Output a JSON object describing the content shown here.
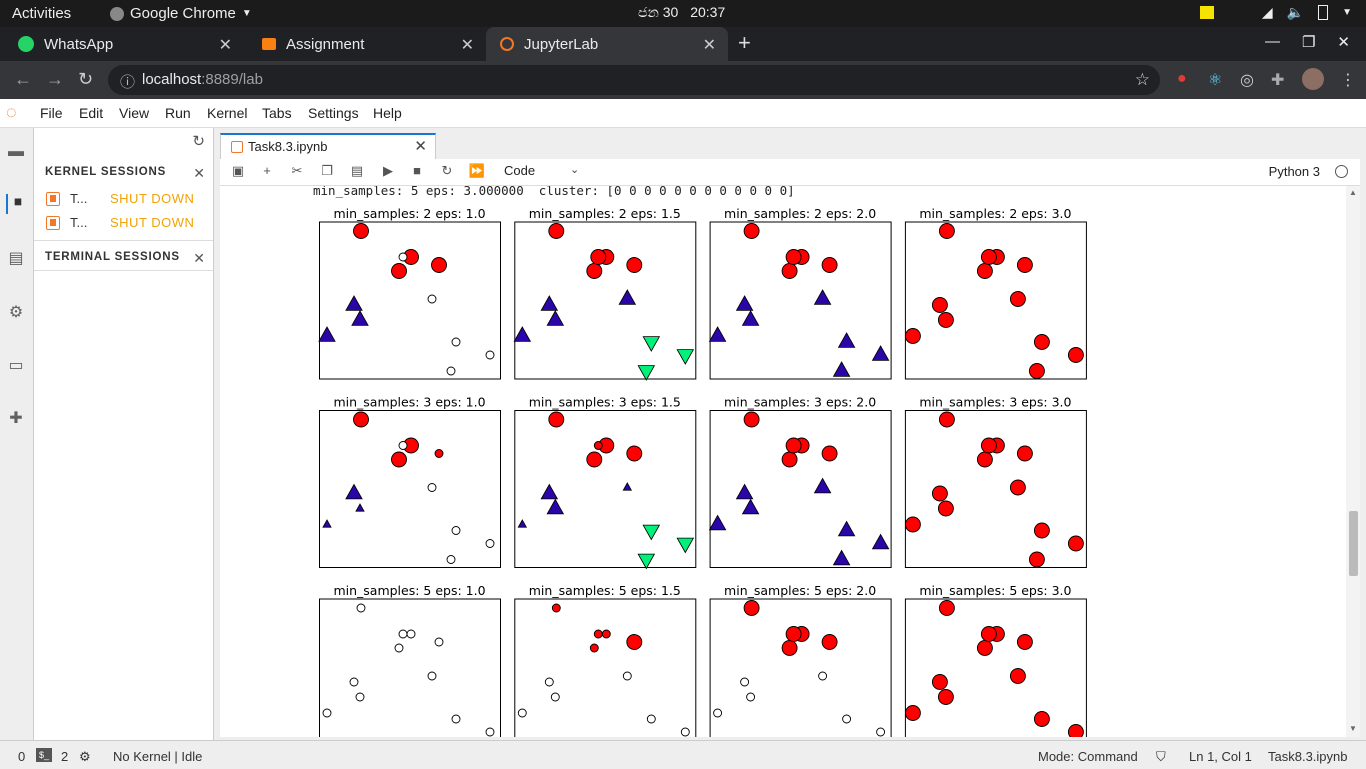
{
  "system_bar": {
    "activities": "Activities",
    "app_name": "Google Chrome",
    "clock_date": "ජන 30",
    "clock_time": "20:37"
  },
  "browser": {
    "tabs": [
      {
        "title": "WhatsApp",
        "icon": "whatsapp-icon",
        "color": "#25d366"
      },
      {
        "title": "Assignment",
        "icon": "moodle-icon",
        "color": "#f98012"
      },
      {
        "title": "JupyterLab",
        "icon": "jupyter-icon",
        "color": "#f37726"
      }
    ],
    "url_host": "localhost",
    "url_rest": ":8889/lab"
  },
  "jupyter": {
    "menu": [
      "File",
      "Edit",
      "View",
      "Run",
      "Kernel",
      "Tabs",
      "Settings",
      "Help"
    ],
    "sidebar": {
      "kernel_sessions_header": "KERNEL SESSIONS",
      "sessions": [
        {
          "name": "T...",
          "action": "SHUT DOWN"
        },
        {
          "name": "T...",
          "action": "SHUT DOWN"
        }
      ],
      "terminal_sessions_header": "TERMINAL SESSIONS"
    },
    "document_tab": "Task8.3.ipynb",
    "cell_type": "Code",
    "kernel_name": "Python 3",
    "stream_output": "min_samples: 5 eps: 3.000000  cluster: [0 0 0 0 0 0 0 0 0 0 0 0]",
    "status": {
      "terminal_count": "0",
      "kernel_count": "2",
      "kernel_state": "No Kernel | Idle",
      "mode": "Mode: Command",
      "cursor": "Ln 1, Col 1",
      "file": "Task8.3.ipynb"
    }
  },
  "chart_data": {
    "type": "scatter",
    "point_layout": {
      "x": [
        42,
        92,
        120,
        80,
        84,
        35,
        41,
        113,
        8,
        137,
        171,
        132
      ],
      "y": [
        9,
        35,
        43,
        49,
        35,
        83,
        98,
        77,
        114,
        120,
        133,
        149
      ],
      "note": "same 12 points in every subplot; rows = min_samples, cols = eps"
    },
    "colors": {
      "cluster_0": "#ff0000",
      "cluster_1": "#2a05a8",
      "cluster_2": "#00f07a",
      "noise": "#ffffff"
    },
    "subplots": [
      {
        "title": "min_samples: 2 eps: 1.0",
        "labels": [
          0,
          0,
          0,
          0,
          -1,
          1,
          1,
          -1,
          1,
          -1,
          -1,
          -1
        ],
        "core": [
          1,
          1,
          1,
          1,
          0,
          1,
          1,
          0,
          1,
          0,
          0,
          0
        ]
      },
      {
        "title": "min_samples: 2 eps: 1.5",
        "labels": [
          0,
          0,
          0,
          0,
          0,
          1,
          1,
          1,
          1,
          2,
          2,
          2
        ],
        "core": [
          1,
          1,
          1,
          1,
          1,
          1,
          1,
          1,
          1,
          1,
          1,
          1
        ]
      },
      {
        "title": "min_samples: 2 eps: 2.0",
        "labels": [
          0,
          0,
          0,
          0,
          0,
          1,
          1,
          1,
          1,
          1,
          1,
          1
        ],
        "core": [
          1,
          1,
          1,
          1,
          1,
          1,
          1,
          1,
          1,
          1,
          1,
          1
        ]
      },
      {
        "title": "min_samples: 2 eps: 3.0",
        "labels": [
          0,
          0,
          0,
          0,
          0,
          0,
          0,
          0,
          0,
          0,
          0,
          0
        ],
        "core": [
          1,
          1,
          1,
          1,
          1,
          1,
          1,
          1,
          1,
          1,
          1,
          1
        ]
      },
      {
        "title": "min_samples: 3 eps: 1.0",
        "labels": [
          0,
          0,
          0,
          0,
          -1,
          1,
          1,
          -1,
          1,
          -1,
          -1,
          -1
        ],
        "core": [
          1,
          1,
          0,
          1,
          0,
          1,
          0,
          0,
          0,
          0,
          0,
          0
        ]
      },
      {
        "title": "min_samples: 3 eps: 1.5",
        "labels": [
          0,
          0,
          0,
          0,
          0,
          1,
          1,
          1,
          1,
          2,
          2,
          2
        ],
        "core": [
          1,
          1,
          1,
          1,
          0,
          1,
          1,
          0,
          0,
          1,
          1,
          1
        ]
      },
      {
        "title": "min_samples: 3 eps: 2.0",
        "labels": [
          0,
          0,
          0,
          0,
          0,
          1,
          1,
          1,
          1,
          1,
          1,
          1
        ],
        "core": [
          1,
          1,
          1,
          1,
          1,
          1,
          1,
          1,
          1,
          1,
          1,
          1
        ]
      },
      {
        "title": "min_samples: 3 eps: 3.0",
        "labels": [
          0,
          0,
          0,
          0,
          0,
          0,
          0,
          0,
          0,
          0,
          0,
          0
        ],
        "core": [
          1,
          1,
          1,
          1,
          1,
          1,
          1,
          1,
          1,
          1,
          1,
          1
        ]
      },
      {
        "title": "min_samples: 5 eps: 1.0",
        "labels": [
          -1,
          -1,
          -1,
          -1,
          -1,
          -1,
          -1,
          -1,
          -1,
          -1,
          -1,
          -1
        ],
        "core": [
          0,
          0,
          0,
          0,
          0,
          0,
          0,
          0,
          0,
          0,
          0,
          0
        ]
      },
      {
        "title": "min_samples: 5 eps: 1.5",
        "labels": [
          0,
          0,
          0,
          0,
          0,
          -1,
          -1,
          -1,
          -1,
          -1,
          -1,
          -1
        ],
        "core": [
          0,
          0,
          1,
          0,
          0,
          0,
          0,
          0,
          0,
          0,
          0,
          0
        ]
      },
      {
        "title": "min_samples: 5 eps: 2.0",
        "labels": [
          0,
          0,
          0,
          0,
          0,
          -1,
          -1,
          -1,
          -1,
          -1,
          -1,
          -1
        ],
        "core": [
          1,
          1,
          1,
          1,
          1,
          0,
          0,
          0,
          0,
          0,
          0,
          0
        ]
      },
      {
        "title": "min_samples: 5 eps: 3.0",
        "labels": [
          0,
          0,
          0,
          0,
          0,
          0,
          0,
          0,
          0,
          0,
          0,
          0
        ],
        "core": [
          1,
          1,
          1,
          1,
          1,
          1,
          1,
          1,
          1,
          1,
          1,
          0
        ]
      }
    ]
  }
}
